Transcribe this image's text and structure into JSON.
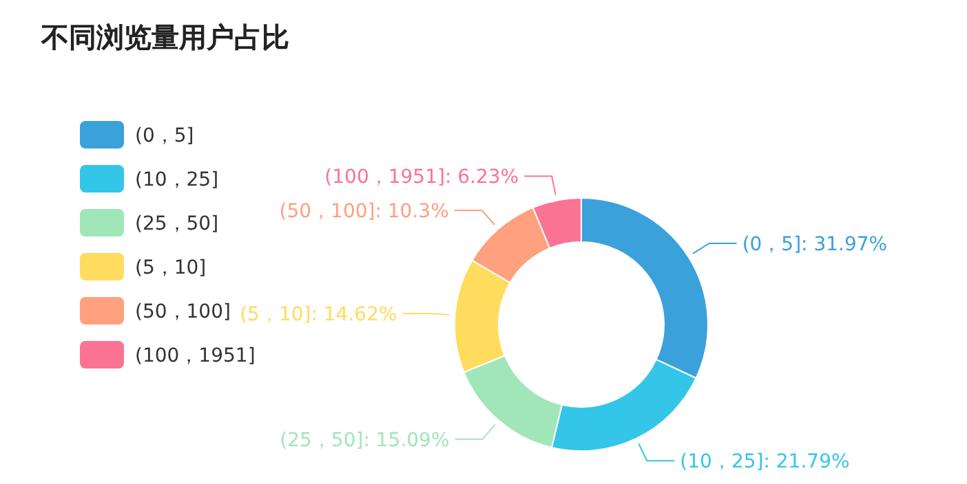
{
  "chart_data": {
    "type": "donut",
    "title": "不同浏览量用户占比",
    "categories": [
      "(0，5]",
      "(10，25]",
      "(25，50]",
      "(5，10]",
      "(50，100]",
      "(100，1951]"
    ],
    "values": [
      31.97,
      21.79,
      15.09,
      14.62,
      10.3,
      6.23
    ],
    "colors": [
      "#3ba1db",
      "#33c6e9",
      "#a0e6b8",
      "#ffdc5e",
      "#ffa07f",
      "#fb7393"
    ],
    "value_labels": [
      "(0，5]: 31.97%",
      "(10，25]: 21.79%",
      "(25，50]: 15.09%",
      "(5，10]: 14.62%",
      "(50，100]: 10.3%",
      "(100，1951]: 6.23%"
    ],
    "legend": "left"
  }
}
